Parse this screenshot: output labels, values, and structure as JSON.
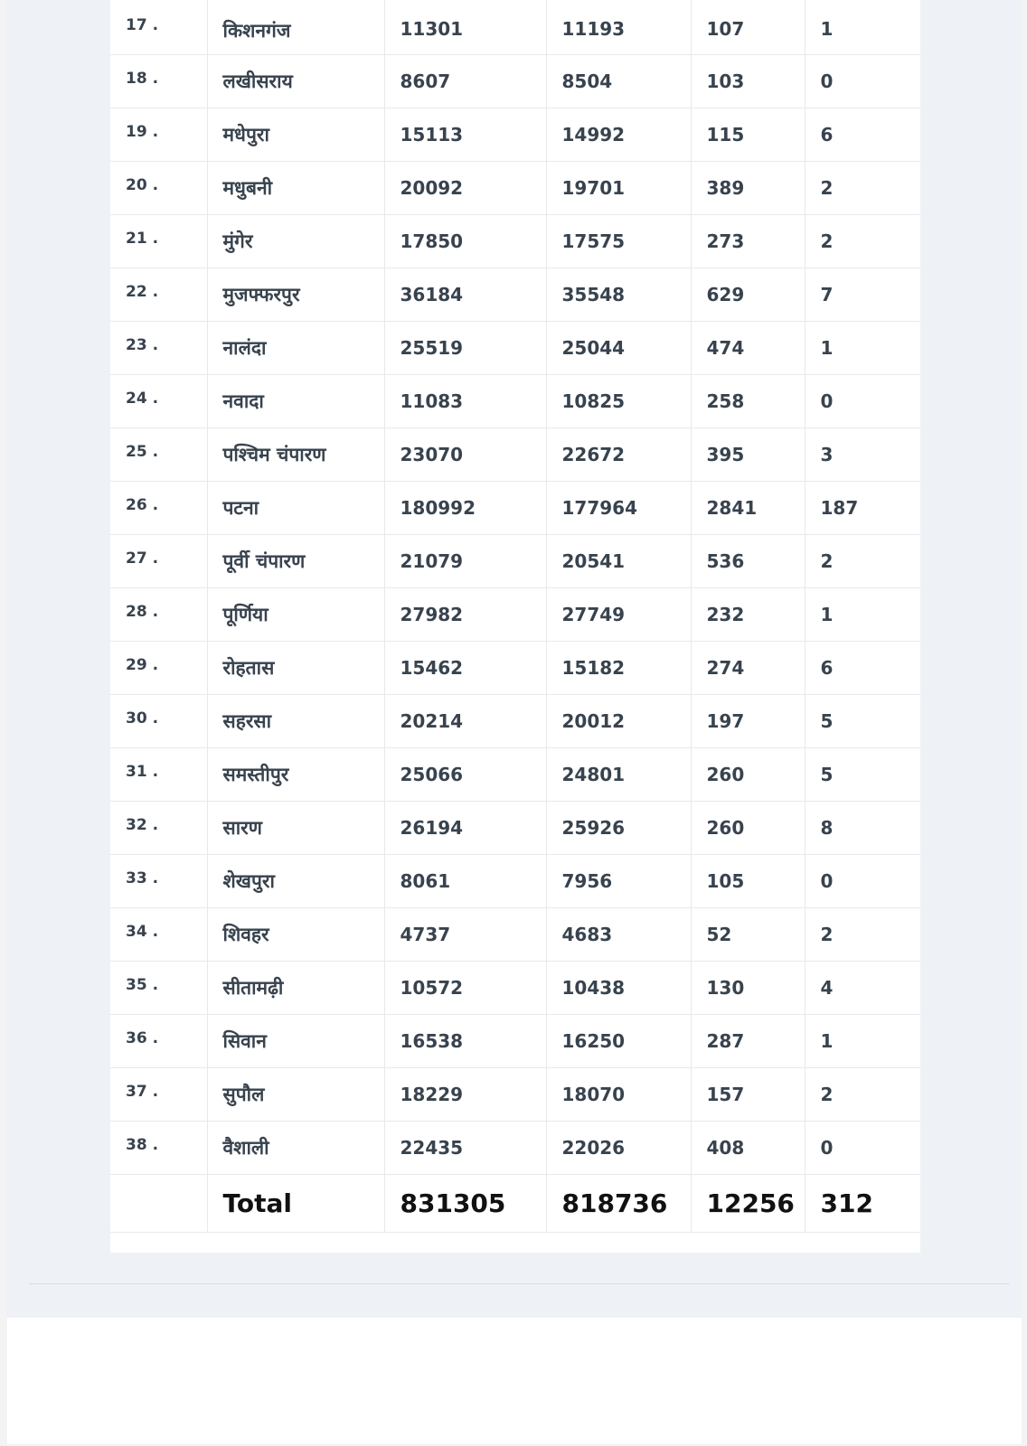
{
  "table": {
    "rows": [
      {
        "sn": "17 .",
        "district": "किशनगंज",
        "c1": "11301",
        "c2": "11193",
        "c3": "107",
        "c4": "1"
      },
      {
        "sn": "18 .",
        "district": "लखीसराय",
        "c1": "8607",
        "c2": "8504",
        "c3": "103",
        "c4": "0"
      },
      {
        "sn": "19 .",
        "district": "मधेपुरा",
        "c1": "15113",
        "c2": "14992",
        "c3": "115",
        "c4": "6"
      },
      {
        "sn": "20 .",
        "district": "मधुबनी",
        "c1": "20092",
        "c2": "19701",
        "c3": "389",
        "c4": "2"
      },
      {
        "sn": "21 .",
        "district": "मुंगेर",
        "c1": "17850",
        "c2": "17575",
        "c3": "273",
        "c4": "2"
      },
      {
        "sn": "22 .",
        "district": "मुजफ्फरपुर",
        "c1": "36184",
        "c2": "35548",
        "c3": "629",
        "c4": "7"
      },
      {
        "sn": "23 .",
        "district": "नालंदा",
        "c1": "25519",
        "c2": "25044",
        "c3": "474",
        "c4": "1"
      },
      {
        "sn": "24 .",
        "district": "नवादा",
        "c1": "11083",
        "c2": "10825",
        "c3": "258",
        "c4": "0"
      },
      {
        "sn": "25 .",
        "district": "पश्चिम चंपारण",
        "c1": "23070",
        "c2": "22672",
        "c3": "395",
        "c4": "3"
      },
      {
        "sn": "26 .",
        "district": "पटना",
        "c1": "180992",
        "c2": "177964",
        "c3": "2841",
        "c4": "187"
      },
      {
        "sn": "27 .",
        "district": "पूर्वी चंपारण",
        "c1": "21079",
        "c2": "20541",
        "c3": "536",
        "c4": "2"
      },
      {
        "sn": "28 .",
        "district": "पूर्णिया",
        "c1": "27982",
        "c2": "27749",
        "c3": "232",
        "c4": "1"
      },
      {
        "sn": "29 .",
        "district": "रोहतास",
        "c1": "15462",
        "c2": "15182",
        "c3": "274",
        "c4": "6"
      },
      {
        "sn": "30 .",
        "district": "सहरसा",
        "c1": "20214",
        "c2": "20012",
        "c3": "197",
        "c4": "5"
      },
      {
        "sn": "31 .",
        "district": "समस्तीपुर",
        "c1": "25066",
        "c2": "24801",
        "c3": "260",
        "c4": "5"
      },
      {
        "sn": "32 .",
        "district": "सारण",
        "c1": "26194",
        "c2": "25926",
        "c3": "260",
        "c4": "8"
      },
      {
        "sn": "33 .",
        "district": "शेखपुरा",
        "c1": "8061",
        "c2": "7956",
        "c3": "105",
        "c4": "0"
      },
      {
        "sn": "34 .",
        "district": "शिवहर",
        "c1": "4737",
        "c2": "4683",
        "c3": "52",
        "c4": "2"
      },
      {
        "sn": "35 .",
        "district": "सीतामढ़ी",
        "c1": "10572",
        "c2": "10438",
        "c3": "130",
        "c4": "4"
      },
      {
        "sn": "36 .",
        "district": "सिवान",
        "c1": "16538",
        "c2": "16250",
        "c3": "287",
        "c4": "1"
      },
      {
        "sn": "37 .",
        "district": "सुपौल",
        "c1": "18229",
        "c2": "18070",
        "c3": "157",
        "c4": "2"
      },
      {
        "sn": "38 .",
        "district": "वैशाली",
        "c1": "22435",
        "c2": "22026",
        "c3": "408",
        "c4": "0"
      }
    ],
    "total": {
      "sn": "",
      "label": "Total",
      "c1": "831305",
      "c2": "818736",
      "c3": "12256",
      "c4": "312"
    }
  }
}
